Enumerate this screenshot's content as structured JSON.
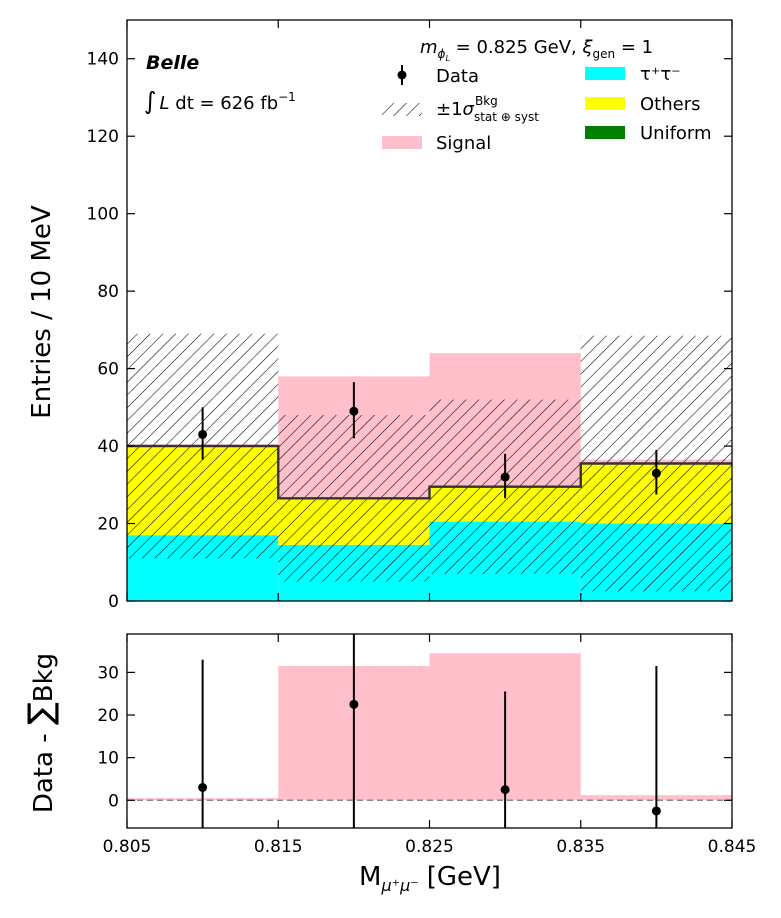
{
  "chart_data": {
    "type": "bar",
    "x_edges": [
      0.805,
      0.815,
      0.825,
      0.835,
      0.845
    ],
    "x_centers": [
      0.81,
      0.82,
      0.83,
      0.84
    ],
    "x_tick_labels": [
      "0.805",
      "0.815",
      "0.825",
      "0.835",
      "0.845"
    ],
    "xlabel_main": "M",
    "xlabel_sub": "μ⁺μ⁻",
    "xlabel_unit": "[GeV]",
    "xlim": [
      0.805,
      0.845
    ],
    "top_panel": {
      "ylabel": "Entries / 10 MeV",
      "ylim": [
        0,
        150
      ],
      "y_ticks": [
        0,
        20,
        40,
        60,
        80,
        100,
        120,
        140
      ],
      "stack_series": [
        {
          "name": "τ⁺τ⁻",
          "key": "tautau",
          "color": "#00ffff",
          "values": [
            17,
            14.5,
            20.5,
            20
          ]
        },
        {
          "name": "Others",
          "key": "others",
          "color": "#ffff00",
          "values": [
            23,
            12,
            9,
            15.5
          ]
        },
        {
          "name": "Uniform",
          "key": "uniform",
          "color": "#008000",
          "values": [
            0,
            0,
            0,
            0
          ]
        }
      ],
      "total_bkg": [
        40,
        26.5,
        29.5,
        35.5
      ],
      "bkg_unc_low": [
        11,
        5,
        7,
        2.5
      ],
      "bkg_unc_high": [
        69,
        48,
        52,
        68.5
      ],
      "signal": {
        "name": "Signal",
        "color": "#ffc0cb",
        "values": [
          0.5,
          31.5,
          34.5,
          1
        ]
      },
      "data": {
        "name": "Data",
        "values": [
          43,
          49,
          32,
          33
        ],
        "err_low": [
          6.5,
          7,
          5.5,
          5.5
        ],
        "err_high": [
          7,
          7.5,
          6,
          6
        ]
      }
    },
    "bottom_panel": {
      "ylabel_prefix": "Data - ",
      "ylabel_sum": "∑",
      "ylabel_suffix": "Bkg",
      "ylim": [
        -6.5,
        39
      ],
      "y_ticks": [
        0,
        10,
        20,
        30
      ],
      "signal": [
        0.5,
        31.5,
        34.5,
        1.2
      ],
      "diff": [
        3,
        22.5,
        2.5,
        -2.5
      ],
      "diff_err": [
        30,
        31,
        23,
        34
      ]
    },
    "legend": {
      "data": "Data",
      "unc_prefix": "±1",
      "unc_symbol": "σ",
      "unc_sub": "stat ⊕ syst",
      "unc_sup": "Bkg",
      "signal": "Signal",
      "tautau": "τ⁺τ⁻",
      "others": "Others",
      "uniform": "Uniform"
    },
    "annotations": {
      "experiment": "Belle",
      "lumi_prefix": "∫",
      "lumi_L": "L",
      "lumi_mid": " dt  =  626 fb",
      "lumi_sup": "−1",
      "mass_m": "m",
      "mass_sub": "ϕ",
      "mass_subsub": "L",
      "mass_eq": " = 0.825 GeV, ",
      "xi": "ξ",
      "xi_sub": "gen",
      "xi_eq": " = 1"
    }
  }
}
